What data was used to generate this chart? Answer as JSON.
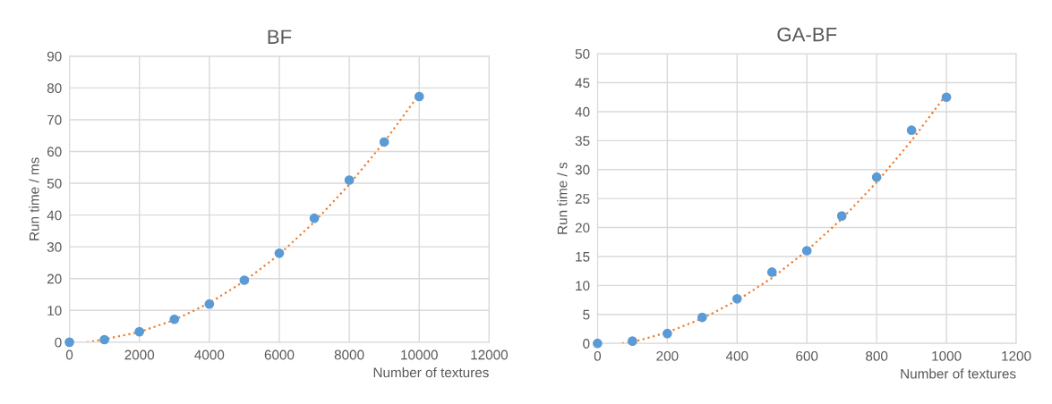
{
  "chart_data": [
    {
      "type": "scatter",
      "title": "BF",
      "xlabel": "Number of textures",
      "ylabel": "Run time / ms",
      "xlim": [
        0,
        12000
      ],
      "ylim": [
        0,
        90
      ],
      "xticks": [
        0,
        2000,
        4000,
        6000,
        8000,
        10000,
        12000
      ],
      "yticks": [
        0,
        10,
        20,
        30,
        40,
        50,
        60,
        70,
        80,
        90
      ],
      "grid": true,
      "series": [
        {
          "marker": "circle",
          "color": "#5b9bd5",
          "x": [
            0,
            1000,
            2000,
            3000,
            4000,
            5000,
            6000,
            7000,
            8000,
            9000,
            10000
          ],
          "values": [
            0,
            0.8,
            3.3,
            7.2,
            12,
            19.5,
            28,
            39,
            51,
            63,
            77.3
          ]
        },
        {
          "type": "line",
          "marker": "none",
          "color": "#ed7d31",
          "line_style": "dotted",
          "x": [
            500,
            1000,
            2000,
            3000,
            4000,
            5000,
            6000,
            7000,
            8000,
            9000,
            10000
          ],
          "values": [
            0,
            0.9,
            3.2,
            7,
            12.3,
            19.2,
            27.6,
            37.8,
            49.6,
            63,
            78
          ]
        }
      ]
    },
    {
      "type": "scatter",
      "title": "GA-BF",
      "xlabel": "Number of textures",
      "ylabel": "Run time / s",
      "xlim": [
        0,
        1200
      ],
      "ylim": [
        0,
        50
      ],
      "xticks": [
        0,
        200,
        400,
        600,
        800,
        1000,
        1200
      ],
      "yticks": [
        0,
        5,
        10,
        15,
        20,
        25,
        30,
        35,
        40,
        45,
        50
      ],
      "grid": true,
      "series": [
        {
          "marker": "circle",
          "color": "#5b9bd5",
          "x": [
            0,
            100,
            200,
            300,
            400,
            500,
            600,
            700,
            800,
            900,
            1000
          ],
          "values": [
            0,
            0.4,
            1.7,
            4.5,
            7.7,
            12.3,
            16,
            22,
            28.7,
            36.8,
            42.5
          ]
        },
        {
          "type": "line",
          "marker": "none",
          "color": "#ed7d31",
          "line_style": "dotted",
          "x": [
            70,
            100,
            200,
            300,
            400,
            500,
            600,
            700,
            800,
            900,
            1000
          ],
          "values": [
            0,
            0.2,
            1.9,
            4.3,
            7.4,
            11.3,
            16,
            21.5,
            27.8,
            35,
            43
          ]
        }
      ]
    }
  ]
}
